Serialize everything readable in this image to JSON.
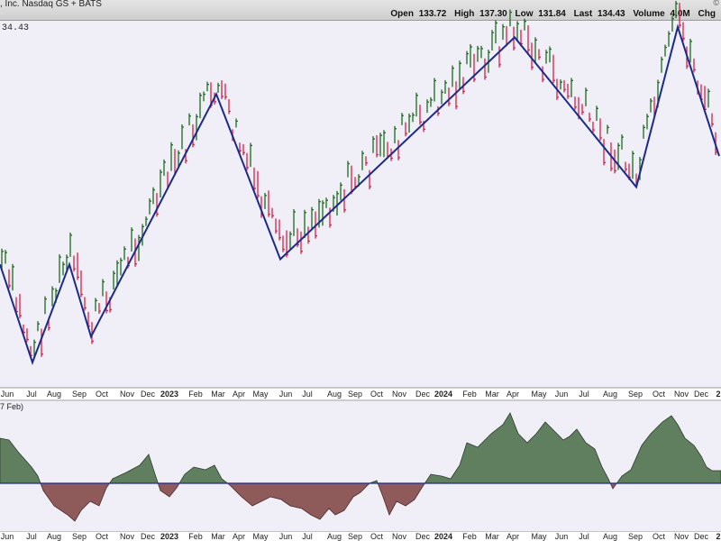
{
  "header": {
    "title": ", Inc. Nasdaq GS + BATS",
    "quote": [
      {
        "label": "Open",
        "value": "133.72"
      },
      {
        "label": "High",
        "value": "137.30"
      },
      {
        "label": "Low",
        "value": "131.84"
      },
      {
        "label": "Last",
        "value": "134.43"
      },
      {
        "label": "Volume",
        "value": "4.0M"
      },
      {
        "label": "Chg",
        "value": ""
      }
    ],
    "corner": "©"
  },
  "price_tag": "34.43",
  "indicator_label": "7 Feb)",
  "colors": {
    "background": "#f0eff8",
    "up_bar": "#1a6b1a",
    "down_bar": "#d81e4a",
    "zigzag": "#1c2a8c",
    "positive_area": "#5f7f5f",
    "negative_area": "#8f5a5a"
  },
  "chart_data": {
    "type": "bar",
    "x_ticks": [
      "Jun",
      "Jul",
      "Aug",
      "Sep",
      "Oct",
      "Nov",
      "Dec",
      "2023",
      "Feb",
      "Mar",
      "Apr",
      "May",
      "Jun",
      "Jul",
      "Aug",
      "Sep",
      "Oct",
      "Nov",
      "Dec",
      "2024",
      "Feb",
      "Mar",
      "Apr",
      "May",
      "Jun",
      "Jul",
      "Aug",
      "Sep",
      "Oct",
      "Nov",
      "Dec",
      "2"
    ],
    "bold_ticks": [
      "2023",
      "2024",
      "2"
    ],
    "zigzag_points": [
      {
        "date": "Jun 2022",
        "price": 105
      },
      {
        "date": "Jul 2022",
        "price": 86
      },
      {
        "date": "Aug 2022",
        "price": 105
      },
      {
        "date": "Sep 2022",
        "price": 91
      },
      {
        "date": "Mar 2023",
        "price": 138
      },
      {
        "date": "Jun 2023",
        "price": 106
      },
      {
        "date": "Apr 2024",
        "price": 149
      },
      {
        "date": "Sep 2024",
        "price": 120
      },
      {
        "date": "Nov 2024",
        "price": 151
      },
      {
        "date": "Dec 2024",
        "price": 126
      }
    ],
    "indicator": {
      "name": "",
      "zero_line": true
    }
  }
}
